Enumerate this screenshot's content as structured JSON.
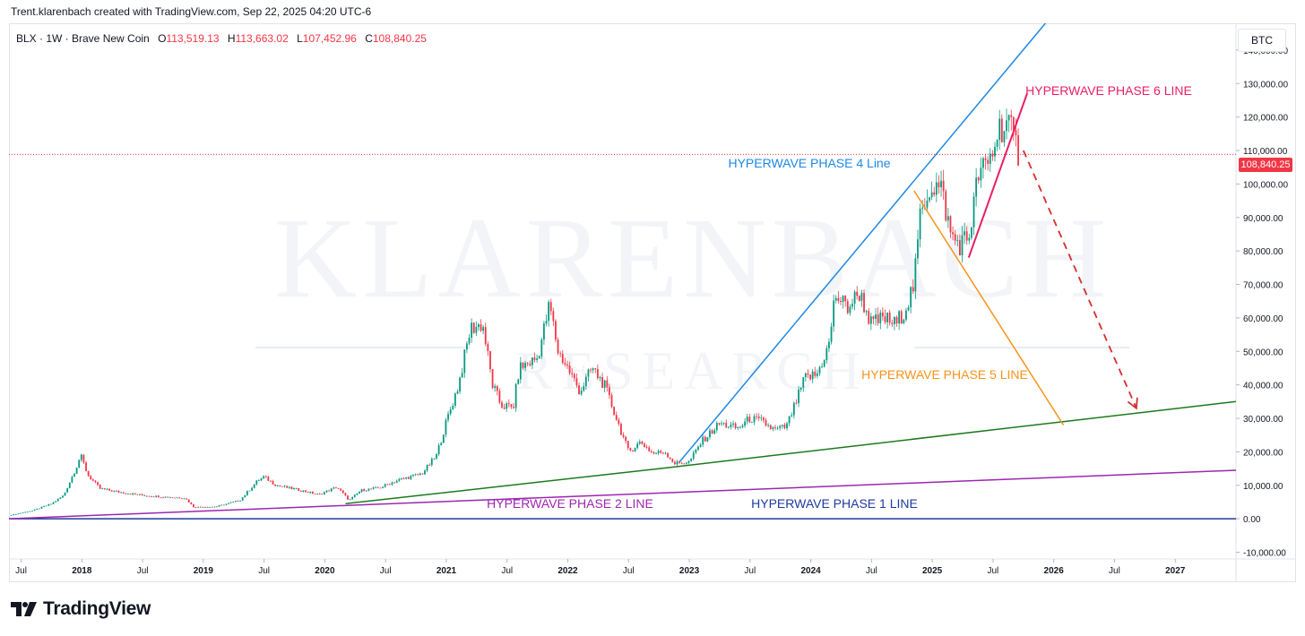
{
  "header": {
    "credit": "Trent.klarenbach created with TradingView.com, Sep 22, 2025 04:20 UTC-6"
  },
  "legend": {
    "symbol": "BLX · 1W · Brave New Coin",
    "open_label": "O",
    "open": "113,519.13",
    "high_label": "H",
    "high": "113,663.02",
    "low_label": "L",
    "low": "107,452.96",
    "close_label": "C",
    "close": "108,840.25"
  },
  "currency": "BTC",
  "last_price": "108,840.25",
  "watermark": {
    "line1": "KLARENBACH",
    "line2": "RESEARCH"
  },
  "footer": {
    "brand": "TradingView"
  },
  "colors": {
    "up": "#089981",
    "down": "#f23645",
    "phase1": "#1f3a9e",
    "phase2": "#9c27b0",
    "phase3": "#1b7a1b",
    "phase4": "#1e88e5",
    "phase5": "#f7931a",
    "phase6": "#e91e63",
    "arrow": "#d32f2f"
  },
  "chart_data": {
    "type": "candlestick",
    "title": "BLX · 1W · Brave New Coin",
    "ylabel": "BTC",
    "ylim": [
      -12000,
      148000
    ],
    "y_ticks": [
      {
        "value": 140000,
        "label": "140,000.00"
      },
      {
        "value": 130000,
        "label": "130,000.00"
      },
      {
        "value": 120000,
        "label": "120,000.00"
      },
      {
        "value": 110000,
        "label": "110,000.00"
      },
      {
        "value": 100000,
        "label": "100,000.00"
      },
      {
        "value": 90000,
        "label": "90,000.00"
      },
      {
        "value": 80000,
        "label": "80,000.00"
      },
      {
        "value": 70000,
        "label": "70,000.00"
      },
      {
        "value": 60000,
        "label": "60,000.00"
      },
      {
        "value": 50000,
        "label": "50,000.00"
      },
      {
        "value": 40000,
        "label": "40,000.00"
      },
      {
        "value": 30000,
        "label": "30,000.00"
      },
      {
        "value": 20000,
        "label": "20,000.00"
      },
      {
        "value": 10000,
        "label": "10,000.00"
      },
      {
        "value": 0,
        "label": "0.00"
      },
      {
        "value": -10000,
        "label": "-10,000.00"
      }
    ],
    "x_range": [
      2017.4,
      2027.5
    ],
    "x_ticks": [
      {
        "t": 2017.5,
        "label": "Jul",
        "bold": false
      },
      {
        "t": 2018.0,
        "label": "2018",
        "bold": true
      },
      {
        "t": 2018.5,
        "label": "Jul",
        "bold": false
      },
      {
        "t": 2019.0,
        "label": "2019",
        "bold": true
      },
      {
        "t": 2019.5,
        "label": "Jul",
        "bold": false
      },
      {
        "t": 2020.0,
        "label": "2020",
        "bold": true
      },
      {
        "t": 2020.5,
        "label": "Jul",
        "bold": false
      },
      {
        "t": 2021.0,
        "label": "2021",
        "bold": true
      },
      {
        "t": 2021.5,
        "label": "Jul",
        "bold": false
      },
      {
        "t": 2022.0,
        "label": "2022",
        "bold": true
      },
      {
        "t": 2022.5,
        "label": "Jul",
        "bold": false
      },
      {
        "t": 2023.0,
        "label": "2023",
        "bold": true
      },
      {
        "t": 2023.5,
        "label": "Jul",
        "bold": false
      },
      {
        "t": 2024.0,
        "label": "2024",
        "bold": true
      },
      {
        "t": 2024.5,
        "label": "Jul",
        "bold": false
      },
      {
        "t": 2025.0,
        "label": "2025",
        "bold": true
      },
      {
        "t": 2025.5,
        "label": "Jul",
        "bold": false
      },
      {
        "t": 2026.0,
        "label": "2026",
        "bold": true
      },
      {
        "t": 2026.5,
        "label": "Jul",
        "bold": false
      },
      {
        "t": 2027.0,
        "label": "2027",
        "bold": true
      }
    ],
    "price_path": [
      [
        2017.4,
        1000
      ],
      [
        2017.6,
        2500
      ],
      [
        2017.75,
        4500
      ],
      [
        2017.85,
        7000
      ],
      [
        2017.95,
        15000
      ],
      [
        2017.99,
        19000
      ],
      [
        2018.05,
        13000
      ],
      [
        2018.15,
        9000
      ],
      [
        2018.3,
        8000
      ],
      [
        2018.5,
        7000
      ],
      [
        2018.7,
        6500
      ],
      [
        2018.85,
        6200
      ],
      [
        2018.92,
        3500
      ],
      [
        2019.1,
        3600
      ],
      [
        2019.3,
        5500
      ],
      [
        2019.45,
        11500
      ],
      [
        2019.5,
        12500
      ],
      [
        2019.6,
        10000
      ],
      [
        2019.8,
        8500
      ],
      [
        2019.95,
        7200
      ],
      [
        2020.1,
        9500
      ],
      [
        2020.2,
        5500
      ],
      [
        2020.3,
        8500
      ],
      [
        2020.45,
        9300
      ],
      [
        2020.6,
        11500
      ],
      [
        2020.8,
        13500
      ],
      [
        2020.92,
        19000
      ],
      [
        2021.0,
        29000
      ],
      [
        2021.1,
        40000
      ],
      [
        2021.2,
        57000
      ],
      [
        2021.3,
        58000
      ],
      [
        2021.38,
        40000
      ],
      [
        2021.45,
        34000
      ],
      [
        2021.55,
        33000
      ],
      [
        2021.6,
        45000
      ],
      [
        2021.75,
        48000
      ],
      [
        2021.85,
        64000
      ],
      [
        2021.92,
        50000
      ],
      [
        2022.0,
        45000
      ],
      [
        2022.1,
        38000
      ],
      [
        2022.2,
        45000
      ],
      [
        2022.3,
        40000
      ],
      [
        2022.4,
        30000
      ],
      [
        2022.5,
        20000
      ],
      [
        2022.6,
        23000
      ],
      [
        2022.7,
        19500
      ],
      [
        2022.8,
        20000
      ],
      [
        2022.88,
        16500
      ],
      [
        2023.0,
        17000
      ],
      [
        2023.1,
        23000
      ],
      [
        2023.25,
        28500
      ],
      [
        2023.4,
        27000
      ],
      [
        2023.5,
        30000
      ],
      [
        2023.6,
        29000
      ],
      [
        2023.7,
        26500
      ],
      [
        2023.8,
        27500
      ],
      [
        2023.88,
        35000
      ],
      [
        2023.95,
        42000
      ],
      [
        2024.05,
        43000
      ],
      [
        2024.15,
        52000
      ],
      [
        2024.2,
        67000
      ],
      [
        2024.3,
        63000
      ],
      [
        2024.4,
        67500
      ],
      [
        2024.5,
        58000
      ],
      [
        2024.6,
        60000
      ],
      [
        2024.7,
        58000
      ],
      [
        2024.78,
        63000
      ],
      [
        2024.85,
        70000
      ],
      [
        2024.9,
        90000
      ],
      [
        2024.95,
        97000
      ],
      [
        2025.0,
        100000
      ],
      [
        2025.08,
        98000
      ],
      [
        2025.15,
        85000
      ],
      [
        2025.22,
        82000
      ],
      [
        2025.3,
        84000
      ],
      [
        2025.38,
        103000
      ],
      [
        2025.45,
        105000
      ],
      [
        2025.5,
        110000
      ],
      [
        2025.55,
        117000
      ],
      [
        2025.62,
        118000
      ],
      [
        2025.68,
        112000
      ],
      [
        2025.72,
        108840
      ]
    ]
  },
  "annotations": {
    "phase1_label": "HYPERWAVE PHASE 1 LINE",
    "phase2_label": "HYPERWAVE PHASE 2 LINE",
    "phase4_label": "HYPERWAVE PHASE 4 Line",
    "phase5_label": "HYPERWAVE PHASE 5 LINE",
    "phase6_label": "HYPERWAVE PHASE 6 LINE",
    "phase1": [
      [
        2017.4,
        0
      ],
      [
        2027.5,
        0
      ]
    ],
    "phase2": [
      [
        2017.4,
        0
      ],
      [
        2027.5,
        14500
      ]
    ],
    "phase3": [
      [
        2020.17,
        4500
      ],
      [
        2022.88,
        15500
      ],
      [
        2027.5,
        35000
      ]
    ],
    "phase4": [
      [
        2022.92,
        17000
      ],
      [
        2026.0,
        151000
      ]
    ],
    "phase5": [
      [
        2024.85,
        98000
      ],
      [
        2026.08,
        28000
      ]
    ],
    "phase6": [
      [
        2025.3,
        78000
      ],
      [
        2025.78,
        127000
      ]
    ],
    "projection": [
      [
        2025.75,
        110000
      ],
      [
        2026.68,
        33000
      ]
    ]
  }
}
